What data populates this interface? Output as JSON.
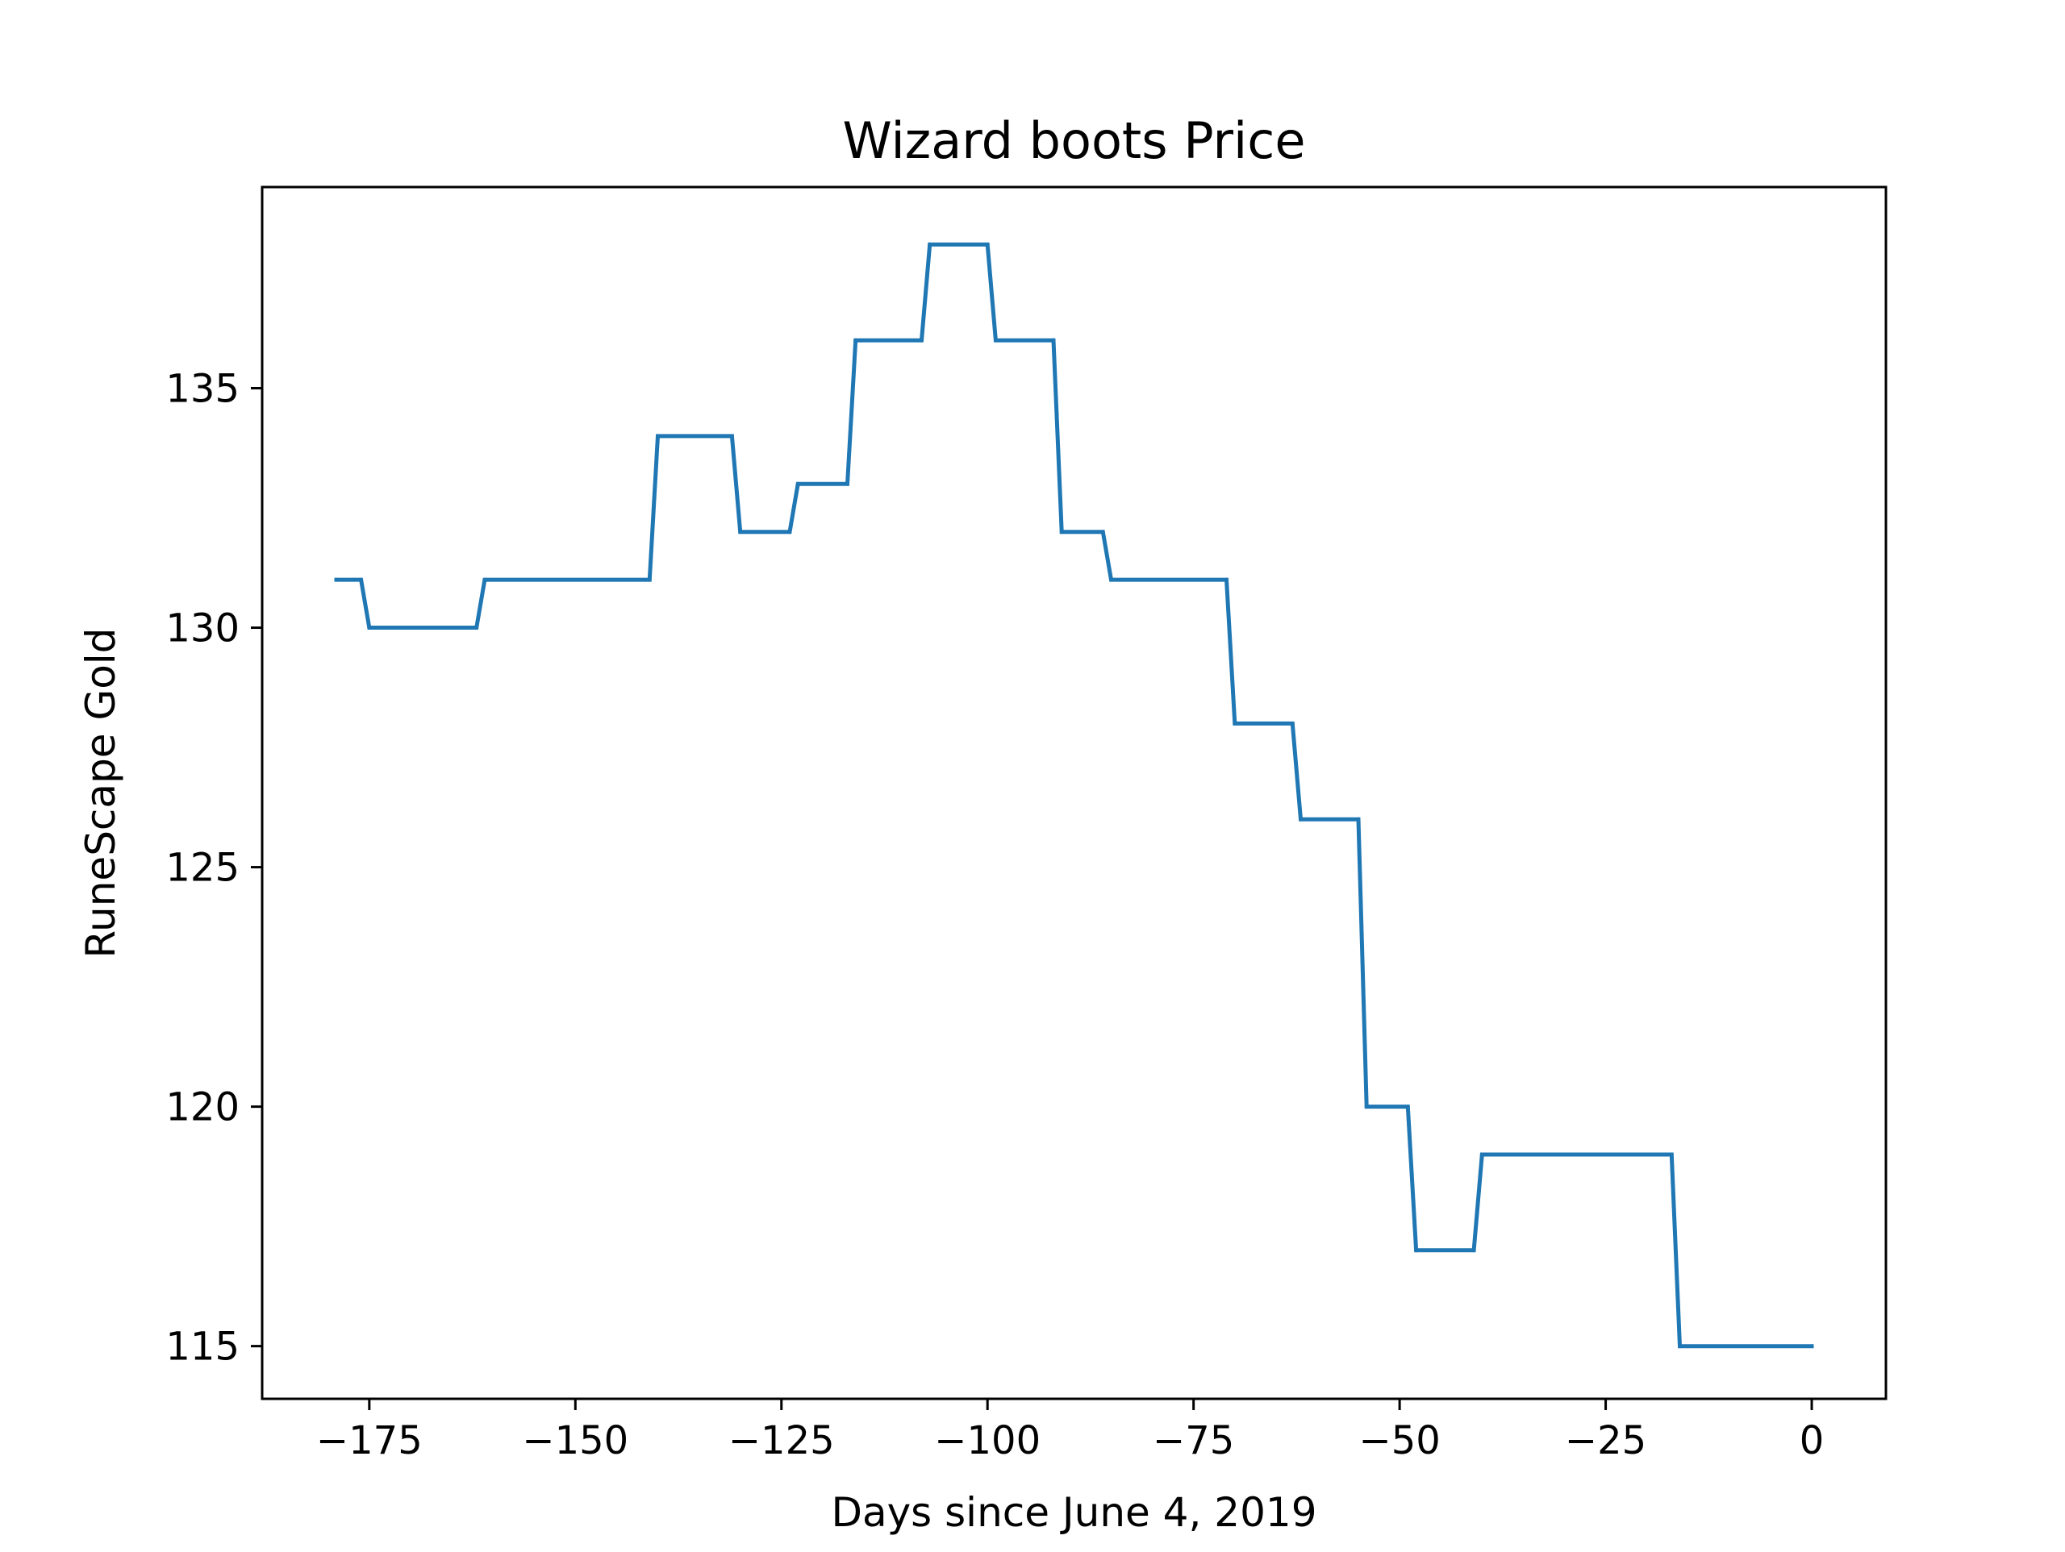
{
  "chart_data": {
    "type": "line",
    "title": "Wizard boots Price",
    "xlabel": "Days since June 4, 2019",
    "ylabel": "RuneScape Gold",
    "xlim": [
      -188,
      9
    ],
    "ylim": [
      113.9,
      139.2
    ],
    "xticks": [
      -175,
      -150,
      -125,
      -100,
      -75,
      -50,
      -25,
      0
    ],
    "xtick_labels": [
      "−175",
      "−150",
      "−125",
      "−100",
      "−75",
      "−50",
      "−25",
      "0"
    ],
    "yticks": [
      115,
      120,
      125,
      130,
      135
    ],
    "ytick_labels": [
      "115",
      "120",
      "125",
      "130",
      "135"
    ],
    "grid": false,
    "legend": "none",
    "series": [
      {
        "color": "#1f77b4",
        "x": [
          -179,
          -176,
          -175,
          -162,
          -161,
          -141,
          -140,
          -131,
          -130,
          -124,
          -123,
          -117,
          -116,
          -108,
          -107,
          -100,
          -99,
          -92,
          -91,
          -86,
          -85,
          -71,
          -70,
          -63,
          -62,
          -55,
          -54,
          -49,
          -48,
          -41,
          -40,
          -17,
          -16,
          0
        ],
        "y": [
          131,
          131,
          130,
          130,
          131,
          131,
          134,
          134,
          132,
          132,
          133,
          133,
          136,
          136,
          138,
          138,
          136,
          136,
          132,
          132,
          131,
          131,
          128,
          128,
          126,
          126,
          120,
          120,
          117,
          117,
          119,
          119,
          115,
          115
        ]
      }
    ]
  }
}
